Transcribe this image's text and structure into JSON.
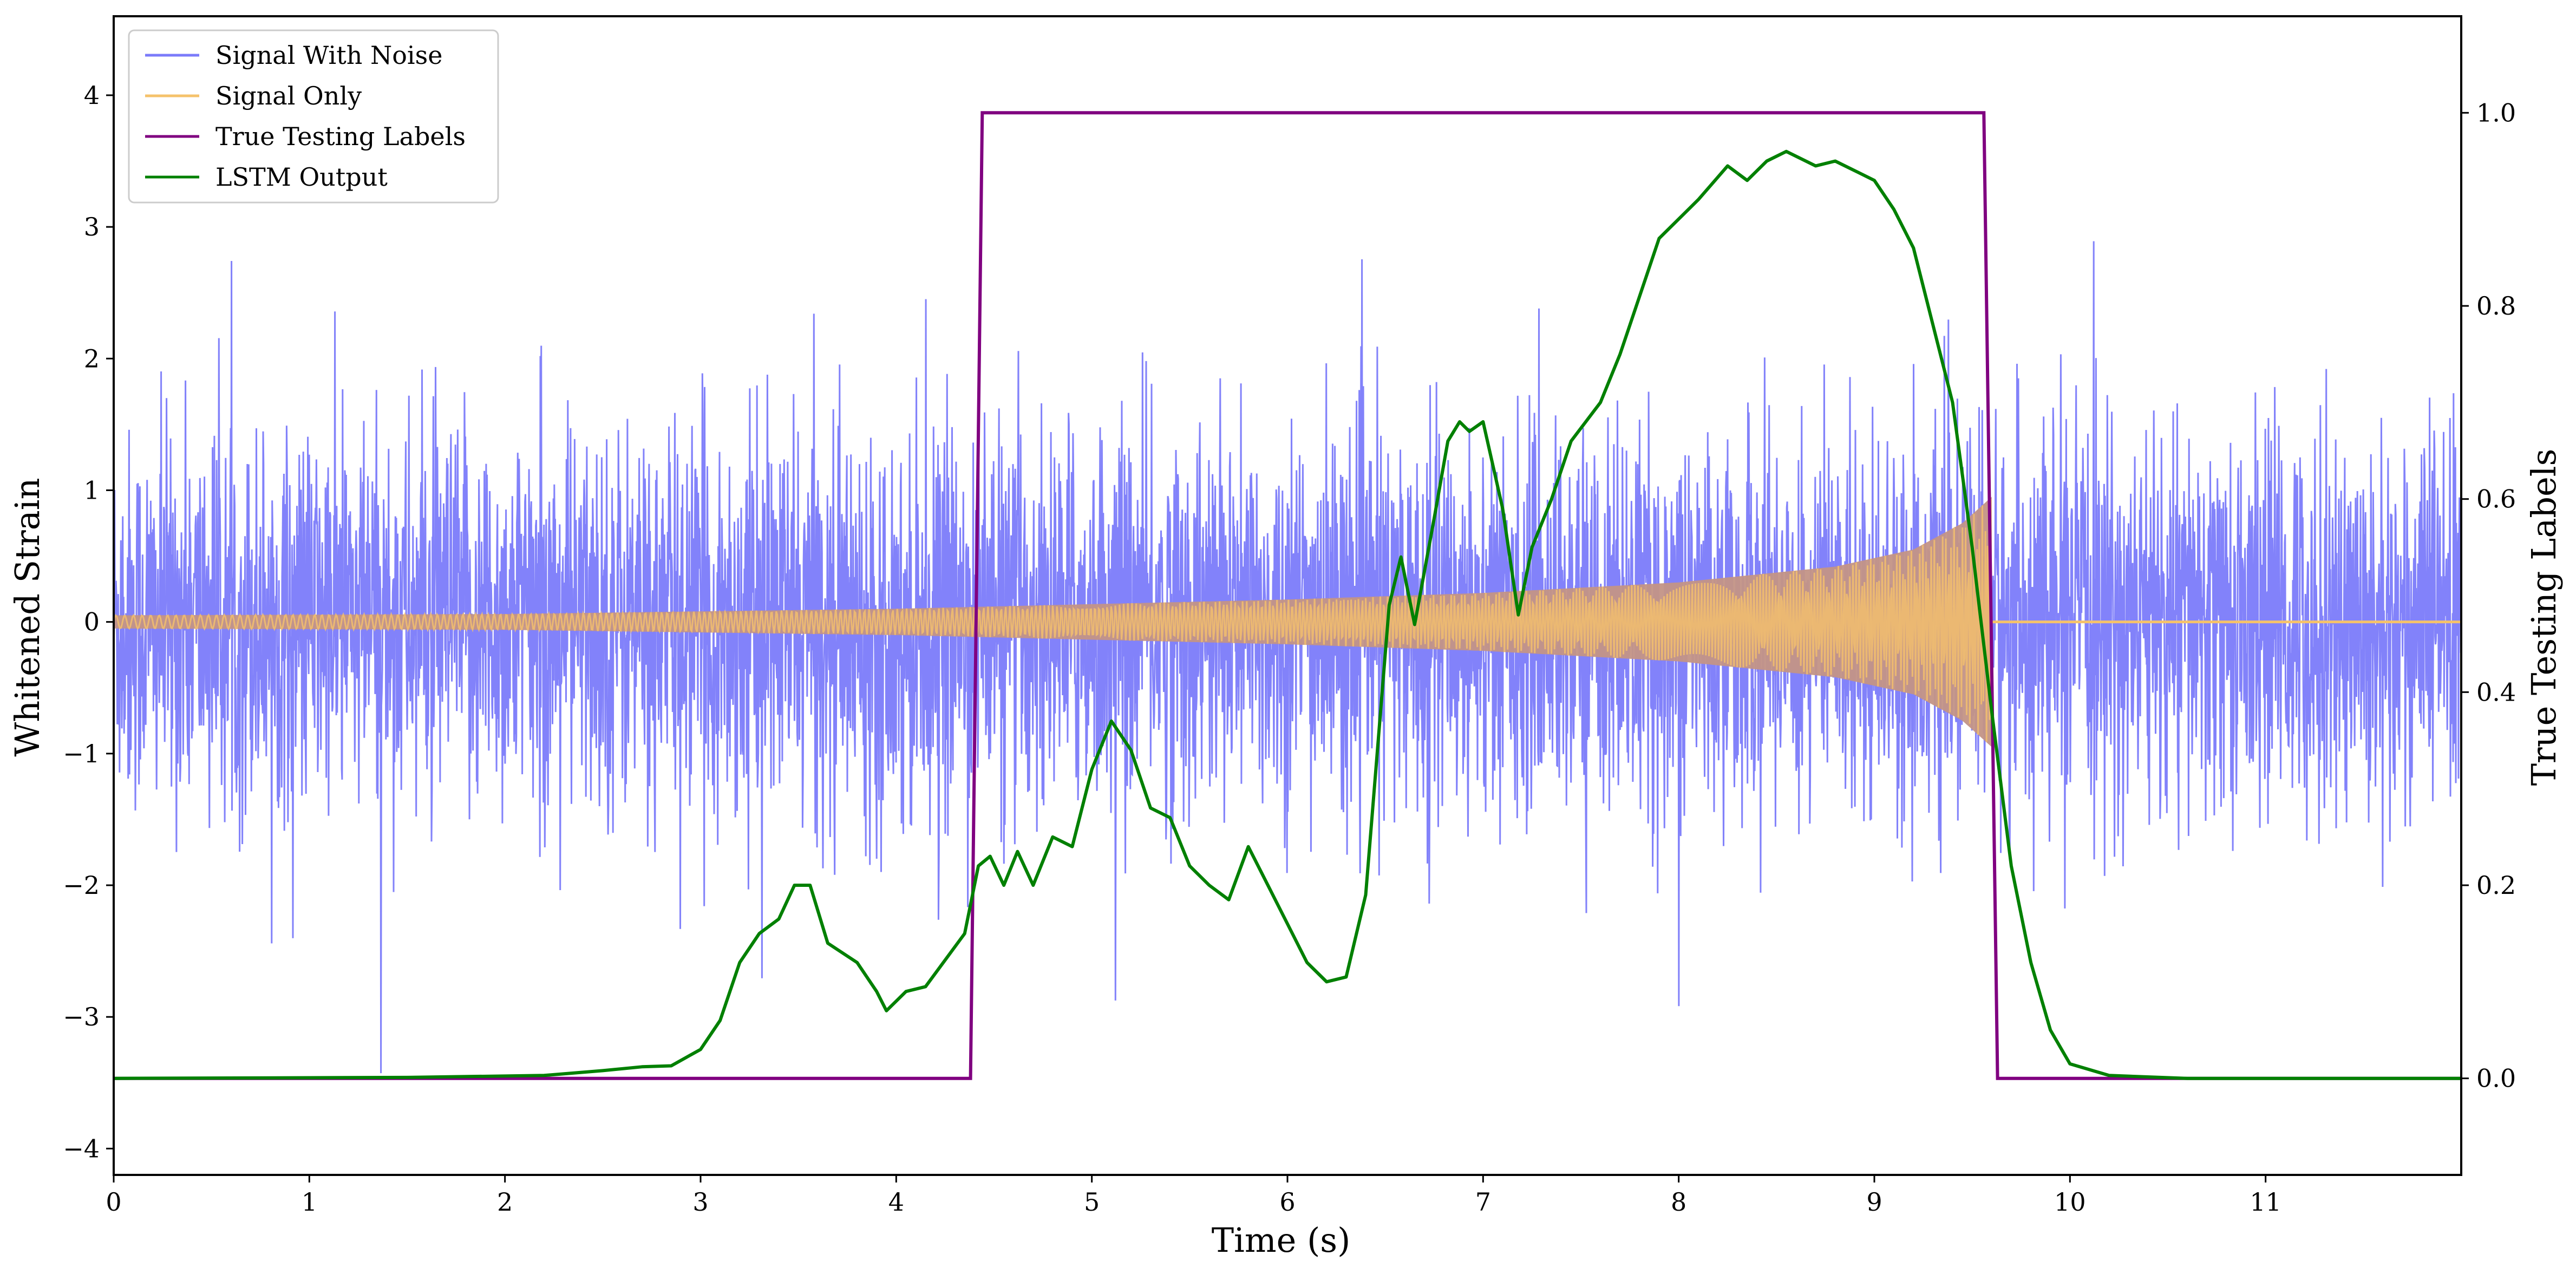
{
  "chart_data": {
    "type": "line",
    "xlabel": "Time (s)",
    "ylabel": "Whitened Strain",
    "y2label": "True Testing Labels",
    "xlim": [
      0,
      12
    ],
    "ylim": [
      -4.2,
      4.6
    ],
    "y2lim": [
      -0.1,
      1.1
    ],
    "x_ticks": [
      "0",
      "1",
      "2",
      "3",
      "4",
      "5",
      "6",
      "7",
      "8",
      "9",
      "10",
      "11"
    ],
    "y_ticks": [
      "−4",
      "−3",
      "−2",
      "−1",
      "0",
      "1",
      "2",
      "3",
      "4"
    ],
    "y2_ticks": [
      "0.0",
      "0.2",
      "0.4",
      "0.6",
      "0.8",
      "1.0"
    ],
    "legend_position": "upper-left",
    "series": [
      {
        "name": "Signal With Noise",
        "axis": "left",
        "color": "#7b7bfa",
        "style": "dense noisy signal, roughly within ±2.2 with spikes up to about ±4",
        "envelope": {
          "lower_typical": -1.6,
          "upper_typical": 1.6
        }
      },
      {
        "name": "Signal Only",
        "axis": "left",
        "color": "#f5c26b",
        "style": "chirp oscillation whose amplitude grows from about 0.05 at t=0 to about 0.95 at t=9.6, then flat zero",
        "envelope": [
          [
            0,
            0.05
          ],
          [
            2,
            0.06
          ],
          [
            4,
            0.1
          ],
          [
            6,
            0.17
          ],
          [
            7,
            0.22
          ],
          [
            8,
            0.3
          ],
          [
            8.8,
            0.42
          ],
          [
            9.2,
            0.55
          ],
          [
            9.45,
            0.75
          ],
          [
            9.6,
            0.95
          ]
        ],
        "merger_time": 9.6
      },
      {
        "name": "True Testing Labels",
        "axis": "right",
        "color": "#800080",
        "points": [
          [
            0,
            0
          ],
          [
            4.38,
            0
          ],
          [
            4.44,
            1
          ],
          [
            9.56,
            1
          ],
          [
            9.63,
            0
          ],
          [
            12,
            0
          ]
        ]
      },
      {
        "name": "LSTM Output",
        "axis": "right",
        "color": "#008000",
        "points": [
          [
            0,
            0
          ],
          [
            1.5,
            0.001
          ],
          [
            2.2,
            0.003
          ],
          [
            2.5,
            0.008
          ],
          [
            2.7,
            0.012
          ],
          [
            2.85,
            0.013
          ],
          [
            3.0,
            0.03
          ],
          [
            3.1,
            0.06
          ],
          [
            3.2,
            0.12
          ],
          [
            3.3,
            0.15
          ],
          [
            3.4,
            0.165
          ],
          [
            3.48,
            0.2
          ],
          [
            3.56,
            0.2
          ],
          [
            3.65,
            0.14
          ],
          [
            3.8,
            0.12
          ],
          [
            3.9,
            0.09
          ],
          [
            3.95,
            0.07
          ],
          [
            4.05,
            0.09
          ],
          [
            4.15,
            0.095
          ],
          [
            4.35,
            0.15
          ],
          [
            4.42,
            0.22
          ],
          [
            4.48,
            0.23
          ],
          [
            4.55,
            0.2
          ],
          [
            4.62,
            0.235
          ],
          [
            4.7,
            0.2
          ],
          [
            4.8,
            0.25
          ],
          [
            4.9,
            0.24
          ],
          [
            5.0,
            0.32
          ],
          [
            5.1,
            0.37
          ],
          [
            5.2,
            0.34
          ],
          [
            5.3,
            0.28
          ],
          [
            5.4,
            0.27
          ],
          [
            5.5,
            0.22
          ],
          [
            5.6,
            0.2
          ],
          [
            5.7,
            0.185
          ],
          [
            5.8,
            0.24
          ],
          [
            5.9,
            0.2
          ],
          [
            6.0,
            0.16
          ],
          [
            6.1,
            0.12
          ],
          [
            6.2,
            0.1
          ],
          [
            6.3,
            0.105
          ],
          [
            6.4,
            0.19
          ],
          [
            6.52,
            0.49
          ],
          [
            6.58,
            0.54
          ],
          [
            6.65,
            0.47
          ],
          [
            6.75,
            0.58
          ],
          [
            6.82,
            0.66
          ],
          [
            6.88,
            0.68
          ],
          [
            6.93,
            0.67
          ],
          [
            7.0,
            0.68
          ],
          [
            7.1,
            0.59
          ],
          [
            7.18,
            0.48
          ],
          [
            7.25,
            0.55
          ],
          [
            7.35,
            0.6
          ],
          [
            7.45,
            0.66
          ],
          [
            7.6,
            0.7
          ],
          [
            7.7,
            0.75
          ],
          [
            7.8,
            0.81
          ],
          [
            7.9,
            0.87
          ],
          [
            8.0,
            0.89
          ],
          [
            8.1,
            0.91
          ],
          [
            8.25,
            0.945
          ],
          [
            8.35,
            0.93
          ],
          [
            8.45,
            0.95
          ],
          [
            8.55,
            0.96
          ],
          [
            8.7,
            0.945
          ],
          [
            8.8,
            0.95
          ],
          [
            8.9,
            0.94
          ],
          [
            9.0,
            0.93
          ],
          [
            9.1,
            0.9
          ],
          [
            9.2,
            0.86
          ],
          [
            9.3,
            0.78
          ],
          [
            9.4,
            0.7
          ],
          [
            9.5,
            0.55
          ],
          [
            9.6,
            0.38
          ],
          [
            9.7,
            0.22
          ],
          [
            9.8,
            0.12
          ],
          [
            9.9,
            0.05
          ],
          [
            10.0,
            0.015
          ],
          [
            10.2,
            0.003
          ],
          [
            10.6,
            0.0
          ],
          [
            12,
            0.0
          ]
        ]
      }
    ]
  }
}
